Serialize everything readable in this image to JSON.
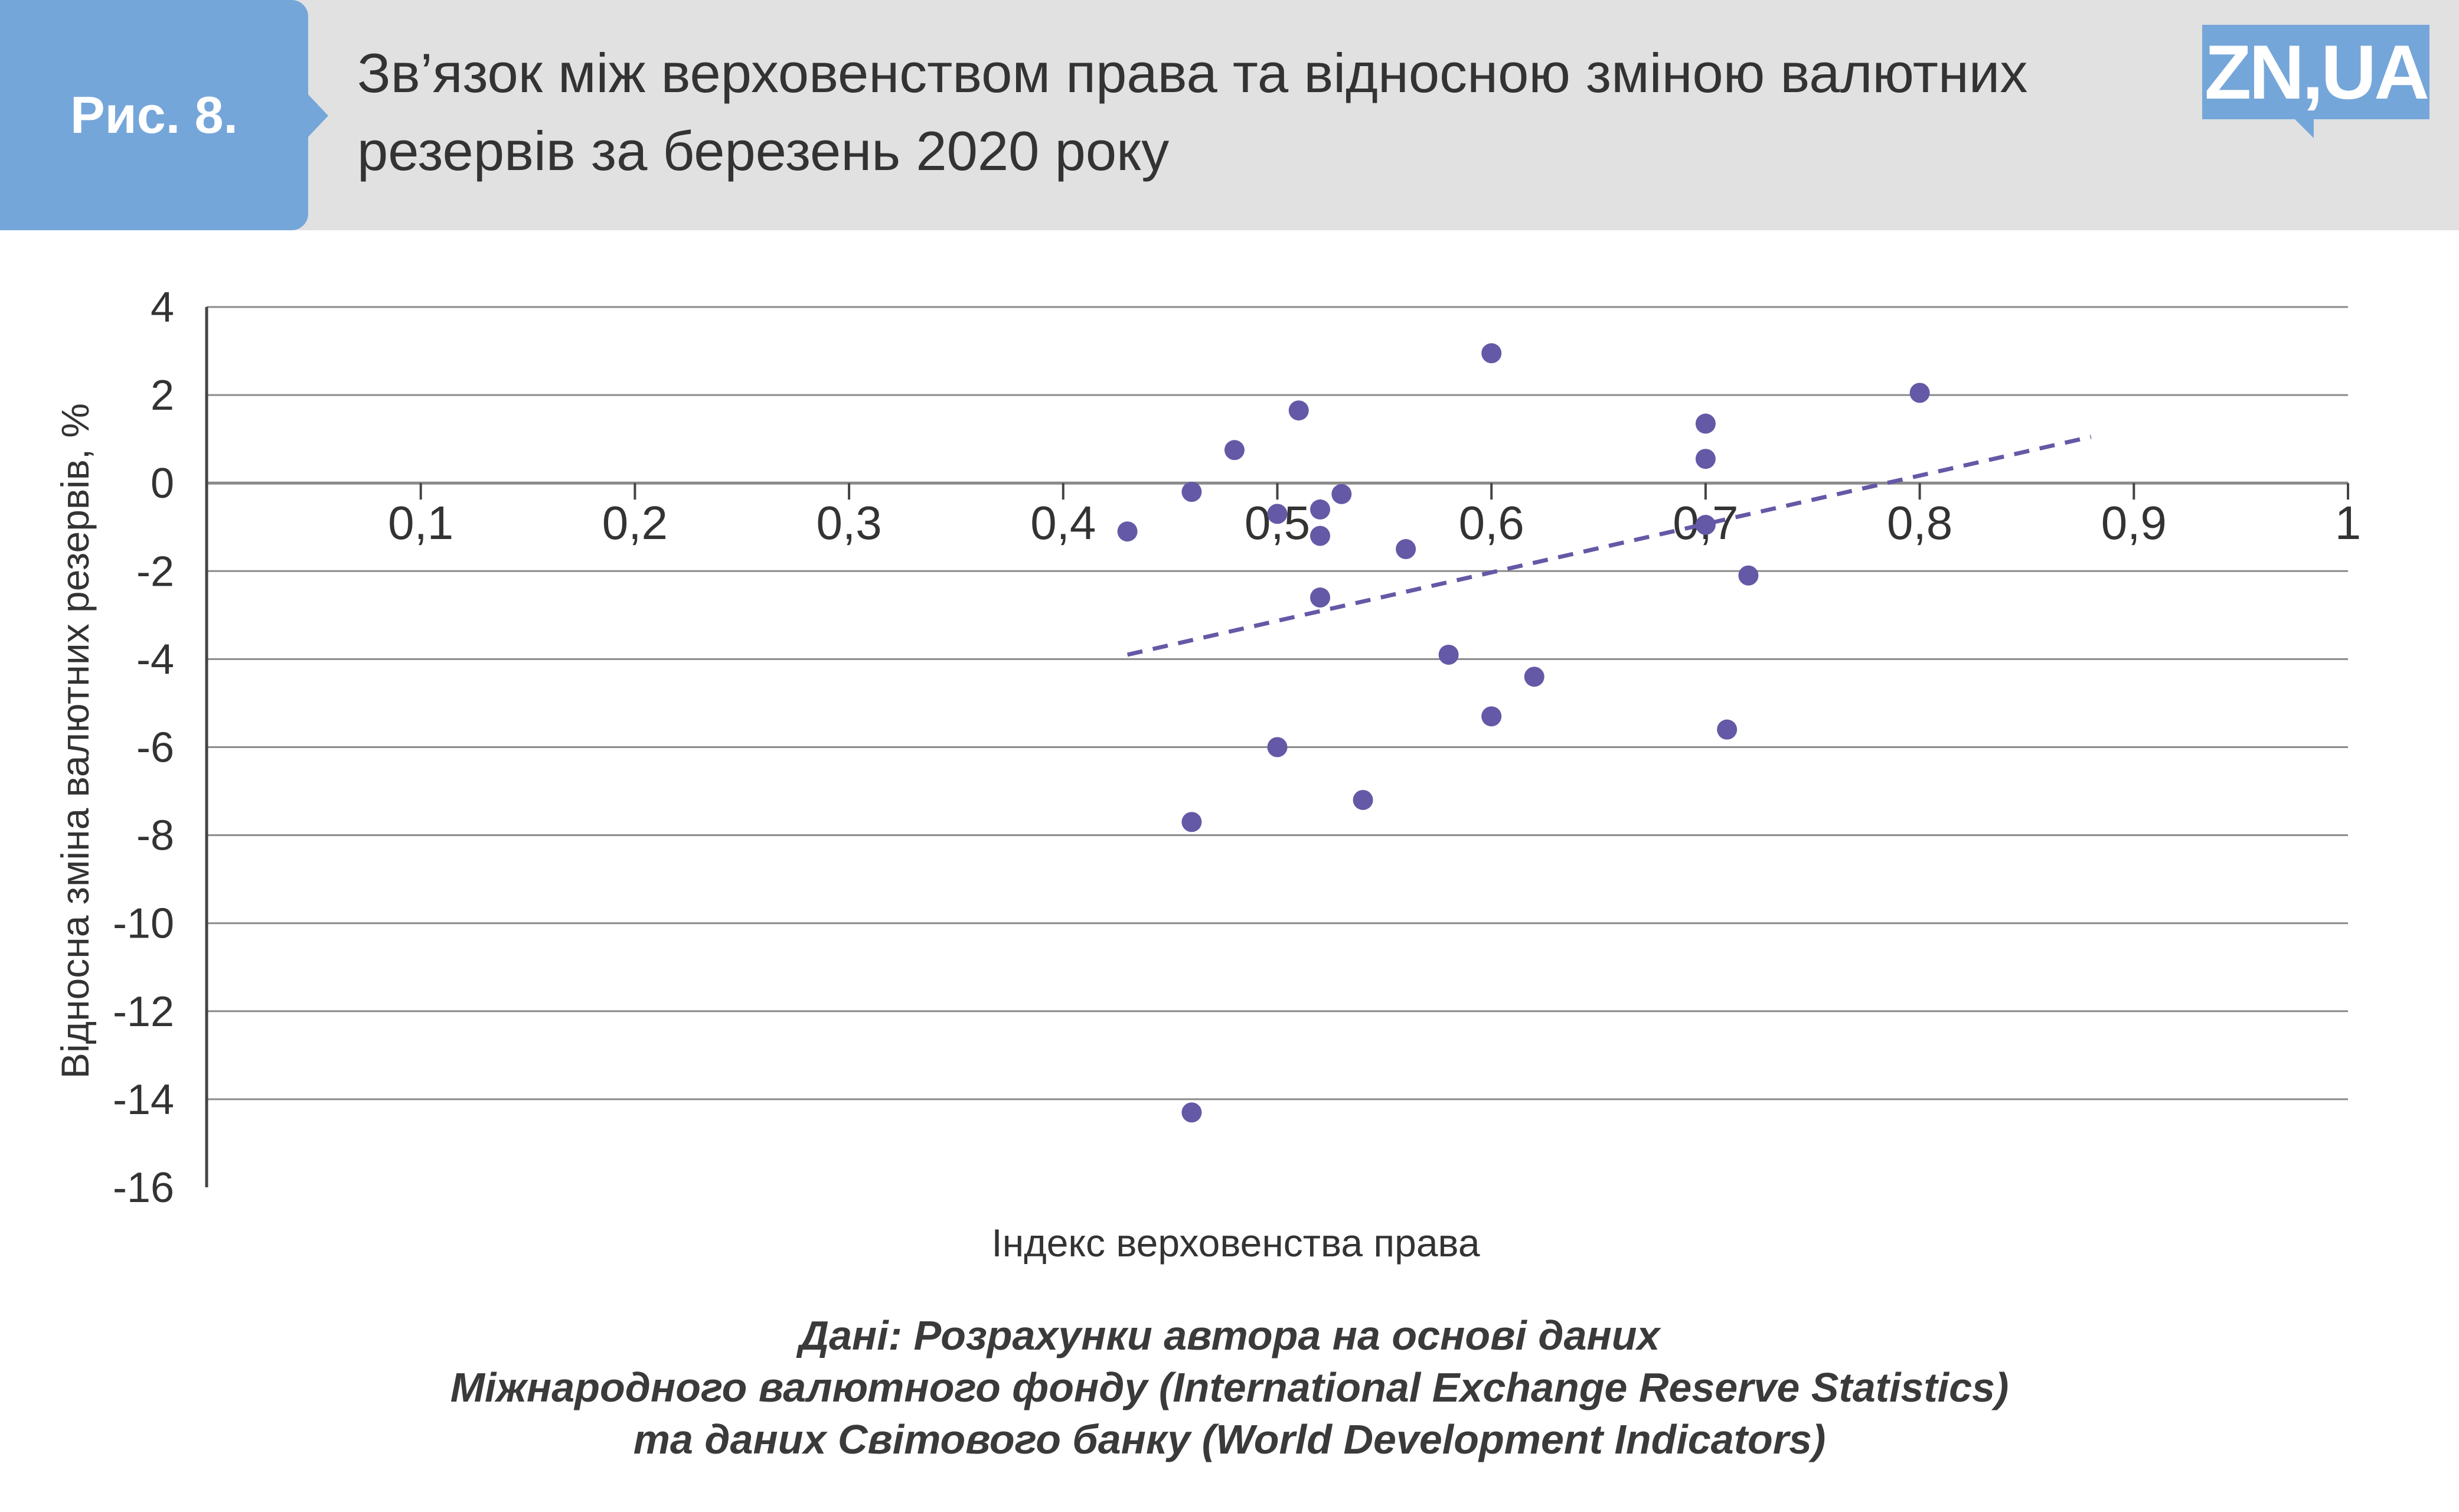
{
  "header": {
    "badge": "Рис. 8.",
    "title": "Зв’язок між верховенством права та відносною зміною валютних резервів за березень 2020 року",
    "logo": "ZN,UA"
  },
  "colors": {
    "header_bg": "#e1e1e1",
    "accent": "#75a6d9",
    "points": "#6459a6",
    "grid": "#8a8a8a",
    "text": "#333333"
  },
  "chart_data": {
    "type": "scatter",
    "xlabel": "Індекс верховенства права",
    "ylabel": "Відносна зміна валютних резервів, %",
    "xlim": [
      0,
      1
    ],
    "ylim": [
      -16,
      4
    ],
    "x_ticks": [
      "0,1",
      "0,2",
      "0,3",
      "0,4",
      "0,5",
      "0,6",
      "0,7",
      "0,8",
      "0,9",
      "1"
    ],
    "x_tick_values": [
      0.1,
      0.2,
      0.3,
      0.4,
      0.5,
      0.6,
      0.7,
      0.8,
      0.9,
      1.0
    ],
    "y_ticks": [
      "4",
      "2",
      "0",
      "-2",
      "-4",
      "-6",
      "-8",
      "-10",
      "-12",
      "-14",
      "-16"
    ],
    "y_tick_values": [
      4,
      2,
      0,
      -2,
      -4,
      -6,
      -8,
      -10,
      -12,
      -14,
      -16
    ],
    "grid": true,
    "points": [
      {
        "x": 0.43,
        "y": -1.1
      },
      {
        "x": 0.46,
        "y": -0.2
      },
      {
        "x": 0.46,
        "y": -7.7
      },
      {
        "x": 0.46,
        "y": -14.3
      },
      {
        "x": 0.48,
        "y": 0.75
      },
      {
        "x": 0.5,
        "y": -0.7
      },
      {
        "x": 0.5,
        "y": -6.0
      },
      {
        "x": 0.51,
        "y": 1.65
      },
      {
        "x": 0.52,
        "y": -0.6
      },
      {
        "x": 0.52,
        "y": -1.2
      },
      {
        "x": 0.52,
        "y": -2.6
      },
      {
        "x": 0.53,
        "y": -0.25
      },
      {
        "x": 0.54,
        "y": -7.2
      },
      {
        "x": 0.56,
        "y": -1.5
      },
      {
        "x": 0.58,
        "y": -3.9
      },
      {
        "x": 0.6,
        "y": 2.95
      },
      {
        "x": 0.6,
        "y": -5.3
      },
      {
        "x": 0.62,
        "y": -4.4
      },
      {
        "x": 0.7,
        "y": 1.35
      },
      {
        "x": 0.7,
        "y": 0.55
      },
      {
        "x": 0.7,
        "y": -0.95
      },
      {
        "x": 0.71,
        "y": -5.6
      },
      {
        "x": 0.72,
        "y": -2.1
      },
      {
        "x": 0.8,
        "y": 2.05
      }
    ],
    "trendline": {
      "style": "dashed",
      "x": [
        0.43,
        0.88
      ],
      "y": [
        -3.9,
        1.05
      ]
    }
  },
  "source": {
    "lines": [
      "Дані: Розрахунки автора на основі даних",
      "Міжнародного валютного фонду (International Exchange Reserve Statistics)",
      "та даних Світового банку (World Development Indicators)"
    ]
  }
}
